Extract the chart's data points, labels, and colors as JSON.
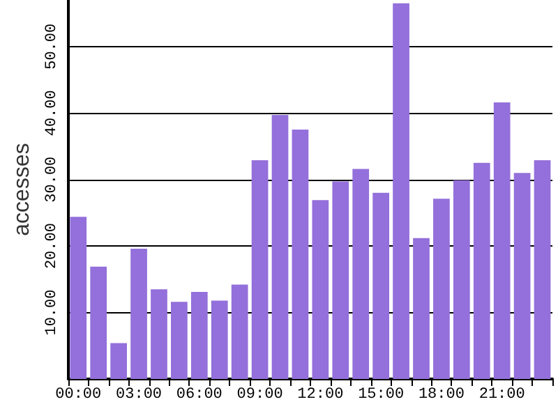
{
  "chart_data": {
    "type": "bar",
    "ylabel": "accesses",
    "categories": [
      "00:00",
      null,
      null,
      "03:00",
      null,
      null,
      "06:00",
      null,
      null,
      "09:00",
      null,
      null,
      "12:00",
      null,
      null,
      "15:00",
      null,
      null,
      "18:00",
      null,
      null,
      "21:00",
      null,
      null
    ],
    "values": [
      24.4,
      16.9,
      5.4,
      19.6,
      13.5,
      11.6,
      13.1,
      11.8,
      14.2,
      32.9,
      39.7,
      37.5,
      26.9,
      29.7,
      31.6,
      28.0,
      56.5,
      21.2,
      27.1,
      29.9,
      32.5,
      41.6,
      31.0,
      32.9
    ],
    "color": "#9370db",
    "ylim": [
      0,
      57
    ],
    "yticks": [
      {
        "value": 10,
        "label": "10.00"
      },
      {
        "value": 20,
        "label": "20.00"
      },
      {
        "value": 30,
        "label": "30.00"
      },
      {
        "value": 40,
        "label": "40.00"
      },
      {
        "value": 50,
        "label": "50.00"
      }
    ],
    "grid": "y"
  }
}
